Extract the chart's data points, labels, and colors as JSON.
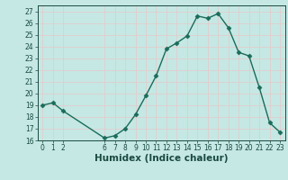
{
  "x": [
    0,
    1,
    2,
    6,
    7,
    8,
    9,
    10,
    11,
    12,
    13,
    14,
    15,
    16,
    17,
    18,
    19,
    20,
    21,
    22,
    23
  ],
  "y": [
    19.0,
    19.2,
    18.5,
    16.2,
    16.4,
    17.0,
    18.2,
    19.8,
    21.5,
    23.8,
    24.3,
    24.9,
    26.6,
    26.4,
    26.8,
    25.6,
    23.5,
    23.2,
    20.5,
    17.5,
    16.7
  ],
  "line_color": "#1a6b5a",
  "marker": "D",
  "marker_size": 2.5,
  "bg_color": "#c5e8e4",
  "grid_color": "#e8c8c8",
  "xlabel": "Humidex (Indice chaleur)",
  "xlim": [
    -0.5,
    23.5
  ],
  "ylim": [
    16,
    27.5
  ],
  "yticks": [
    16,
    17,
    18,
    19,
    20,
    21,
    22,
    23,
    24,
    25,
    26,
    27
  ],
  "xticks": [
    0,
    1,
    2,
    6,
    7,
    8,
    9,
    10,
    11,
    12,
    13,
    14,
    15,
    16,
    17,
    18,
    19,
    20,
    21,
    22,
    23
  ],
  "tick_fontsize": 5.5,
  "xlabel_fontsize": 7.5,
  "line_width": 1.0,
  "tick_color": "#1a4a40",
  "spine_color": "#1a4a40"
}
